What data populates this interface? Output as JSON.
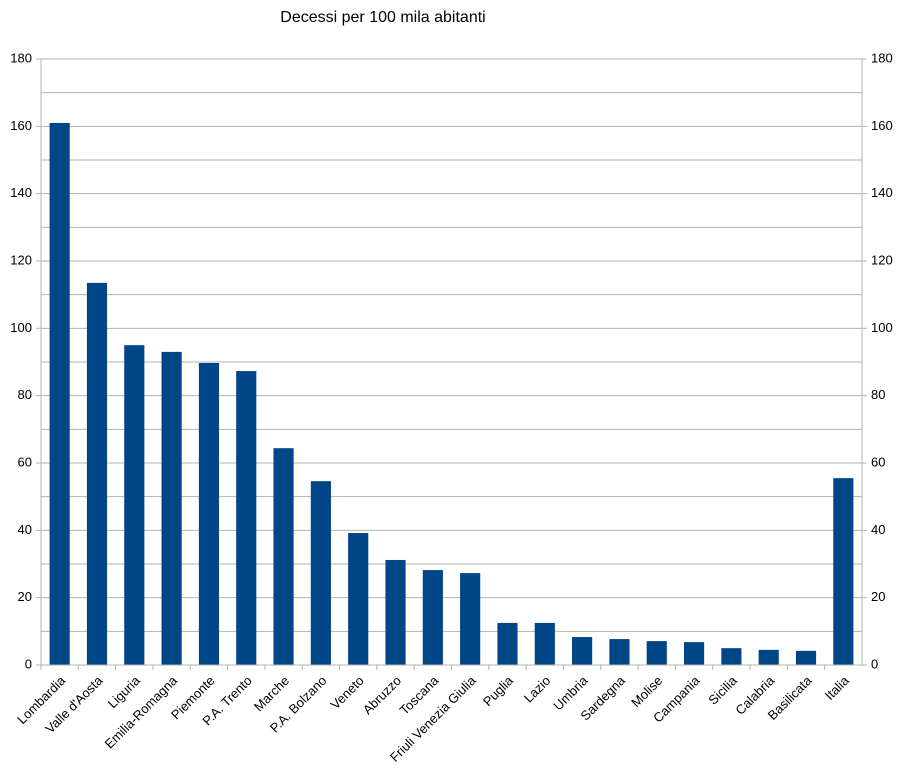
{
  "chart_data": {
    "type": "bar",
    "title": "Decessi per 100 mila abitanti",
    "categories": [
      "Lombardia",
      "Valle d'Aosta",
      "Liguria",
      "Emilia-Romagna",
      "Piemonte",
      "P.A. Trento",
      "Marche",
      "P.A. Bolzano",
      "Veneto",
      "Abruzzo",
      "Toscana",
      "Friuli Venezia Giulia",
      "Puglia",
      "Lazio",
      "Umbria",
      "Sardegna",
      "Molise",
      "Campania",
      "Sicilia",
      "Calabria",
      "Basilicata",
      "Italia"
    ],
    "values": [
      161.0,
      113.5,
      95.0,
      93.0,
      89.7,
      87.3,
      64.4,
      54.6,
      39.2,
      31.2,
      28.2,
      27.3,
      12.5,
      12.5,
      8.3,
      7.7,
      7.1,
      6.8,
      5.0,
      4.5,
      4.2,
      55.5
    ],
    "color": "#004586",
    "ylim": [
      0,
      180
    ],
    "yticks": [
      0,
      20,
      40,
      60,
      80,
      100,
      120,
      140,
      160,
      180
    ],
    "minor_yticks": [
      10,
      30,
      50,
      70,
      90,
      110,
      130,
      150,
      170
    ],
    "y2lim": [
      0,
      180
    ],
    "y2ticks": [
      0,
      20,
      40,
      60,
      80,
      100,
      120,
      140,
      160,
      180
    ],
    "grid": true
  }
}
